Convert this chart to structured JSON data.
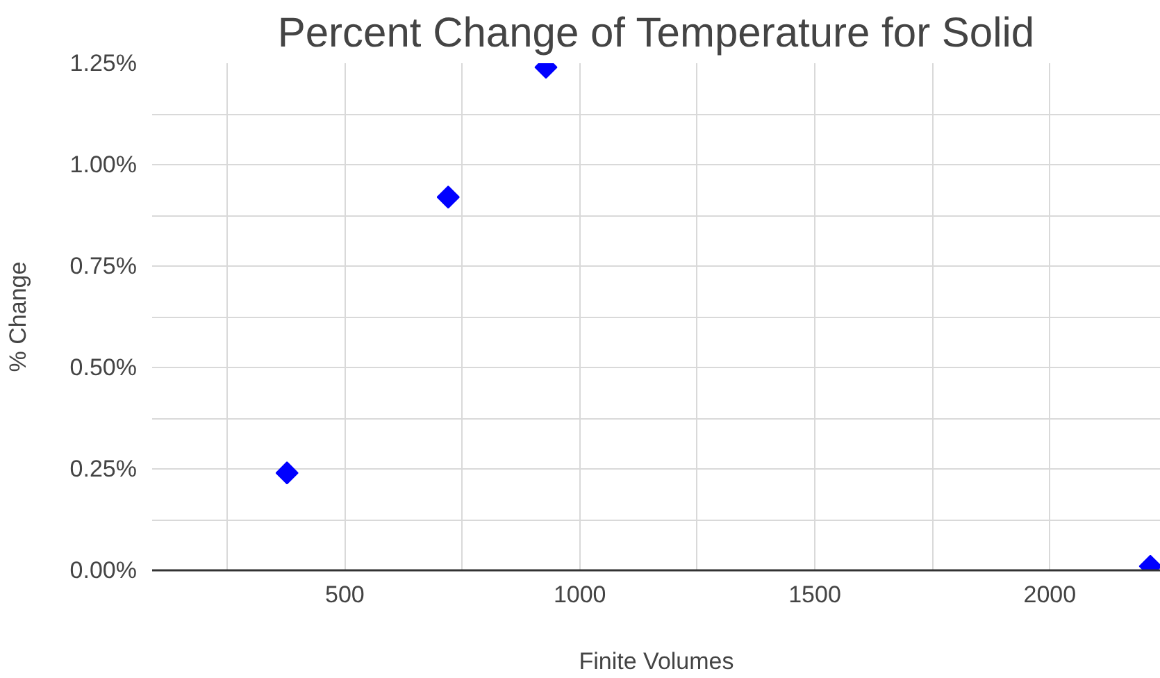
{
  "chart_data": {
    "type": "scatter",
    "title": "Percent Change of Temperature for Solid",
    "xlabel": "Finite Volumes",
    "ylabel": "% Change",
    "x": [
      377,
      720,
      928,
      2214
    ],
    "series": [
      {
        "color": "#0000ff",
        "values": [
          0.24,
          0.92,
          1.24,
          0.01
        ]
      }
    ],
    "marker": "diamond",
    "grid": true,
    "xlim": [
      90,
      2236
    ],
    "xticks": [
      {
        "value": 250,
        "label": null
      },
      500,
      {
        "value": 750,
        "label": null
      },
      1000,
      {
        "value": 1250,
        "label": null
      },
      1500,
      {
        "value": 1750,
        "label": null
      },
      2000
    ],
    "ylim": [
      0,
      1.25
    ],
    "yticks": [
      {
        "value": 0,
        "label": "0.00%"
      },
      {
        "value": 0.125,
        "label": null
      },
      {
        "value": 0.25,
        "label": "0.25%"
      },
      {
        "value": 0.375,
        "label": null
      },
      {
        "value": 0.5,
        "label": "0.50%"
      },
      {
        "value": 0.625,
        "label": null
      },
      {
        "value": 0.75,
        "label": "0.75%"
      },
      {
        "value": 0.875,
        "label": null
      },
      {
        "value": 1.0,
        "label": "1.00%"
      },
      {
        "value": 1.125,
        "label": null
      },
      {
        "value": 1.25,
        "label": "1.25%"
      }
    ]
  }
}
